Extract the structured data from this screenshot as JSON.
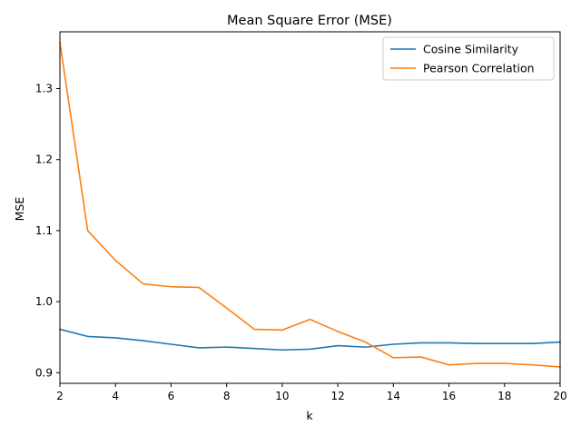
{
  "chart_data": {
    "type": "line",
    "title": "Mean Square Error (MSE)",
    "xlabel": "k",
    "ylabel": "MSE",
    "xlim": [
      2,
      20
    ],
    "ylim": [
      0.885,
      1.38
    ],
    "xticks": [
      2,
      4,
      6,
      8,
      10,
      12,
      14,
      16,
      18,
      20
    ],
    "yticks": [
      0.9,
      1.0,
      1.1,
      1.2,
      1.3
    ],
    "ytick_labels": [
      "0.9",
      "1.0",
      "1.1",
      "1.2",
      "1.3"
    ],
    "legend_position": "top-right",
    "grid": false,
    "x": [
      2,
      3,
      4,
      5,
      6,
      7,
      8,
      9,
      10,
      11,
      12,
      13,
      14,
      15,
      16,
      17,
      18,
      19,
      20
    ],
    "series": [
      {
        "name": "Cosine Similarity",
        "color": "#1f77b4",
        "values": [
          0.961,
          0.951,
          0.949,
          0.945,
          0.94,
          0.935,
          0.936,
          0.934,
          0.932,
          0.933,
          0.938,
          0.936,
          0.94,
          0.942,
          0.942,
          0.941,
          0.941,
          0.941,
          0.943
        ]
      },
      {
        "name": "Pearson Correlation",
        "color": "#ff7f0e",
        "values": [
          1.365,
          1.1,
          1.058,
          1.025,
          1.021,
          1.02,
          0.991,
          0.961,
          0.96,
          0.975,
          0.958,
          0.943,
          0.921,
          0.922,
          0.911,
          0.913,
          0.913,
          0.911,
          0.908
        ]
      }
    ]
  }
}
